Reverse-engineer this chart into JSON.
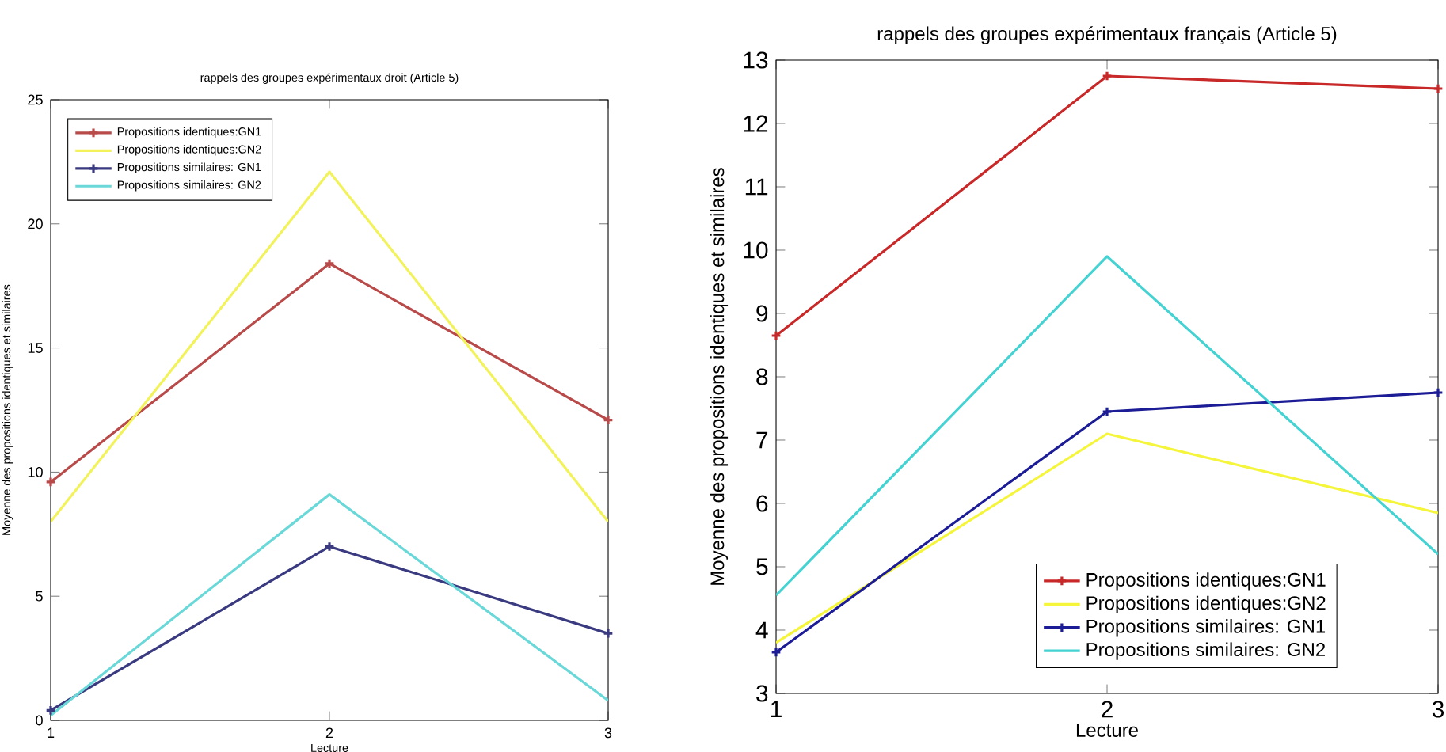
{
  "chart_data": [
    {
      "type": "line",
      "title": "rappels des groupes expérimentaux droit (Article 5)",
      "xlabel": "Lecture",
      "ylabel": "Moyenne des propositions identiques et similaires",
      "x": [
        1,
        2,
        3
      ],
      "xlim": [
        1,
        3
      ],
      "ylim": [
        0,
        25
      ],
      "xticks": [
        1,
        2,
        3
      ],
      "yticks": [
        0,
        5,
        10,
        15,
        20,
        25
      ],
      "legend": "top left",
      "grid": false,
      "line_style": "solid",
      "series": [
        {
          "name": "Propositions identiques:GN1",
          "color": "#b84a4a",
          "marker": "cross",
          "values": [
            9.6,
            18.4,
            12.1
          ]
        },
        {
          "name": "Propositions identiques:GN2",
          "color": "#f2f25a",
          "marker": "none",
          "values": [
            8.0,
            22.1,
            8.0
          ]
        },
        {
          "name": "Propositions similaires: GN1",
          "color": "#3a3a80",
          "marker": "cross",
          "values": [
            0.4,
            7.0,
            3.5
          ]
        },
        {
          "name": "Propositions similaires: GN2",
          "color": "#6ad8d8",
          "marker": "none",
          "values": [
            0.2,
            9.1,
            0.8
          ]
        }
      ]
    },
    {
      "type": "line",
      "title": "rappels des groupes expérimentaux français (Article 5)",
      "xlabel": "Lecture",
      "ylabel": "Moyenne des propositions identiques et similaires",
      "x": [
        1,
        2,
        3
      ],
      "xlim": [
        1,
        3
      ],
      "ylim": [
        3,
        13
      ],
      "xticks": [
        1,
        2,
        3
      ],
      "yticks": [
        3,
        4,
        5,
        6,
        7,
        8,
        9,
        10,
        11,
        12,
        13
      ],
      "legend": "bottom",
      "grid": false,
      "line_style": "solid",
      "series": [
        {
          "name": "Propositions identiques:GN1",
          "color": "#c82828",
          "marker": "cross",
          "values": [
            8.65,
            12.75,
            12.55
          ]
        },
        {
          "name": "Propositions identiques:GN2",
          "color": "#f5f53c",
          "marker": "none",
          "values": [
            3.8,
            7.1,
            5.85
          ]
        },
        {
          "name": "Propositions similaires: GN1",
          "color": "#1c1c96",
          "marker": "cross",
          "values": [
            3.65,
            7.45,
            7.75
          ]
        },
        {
          "name": "Propositions similaires: GN2",
          "color": "#45d2d2",
          "marker": "none",
          "values": [
            4.55,
            9.9,
            5.2
          ]
        }
      ]
    }
  ]
}
